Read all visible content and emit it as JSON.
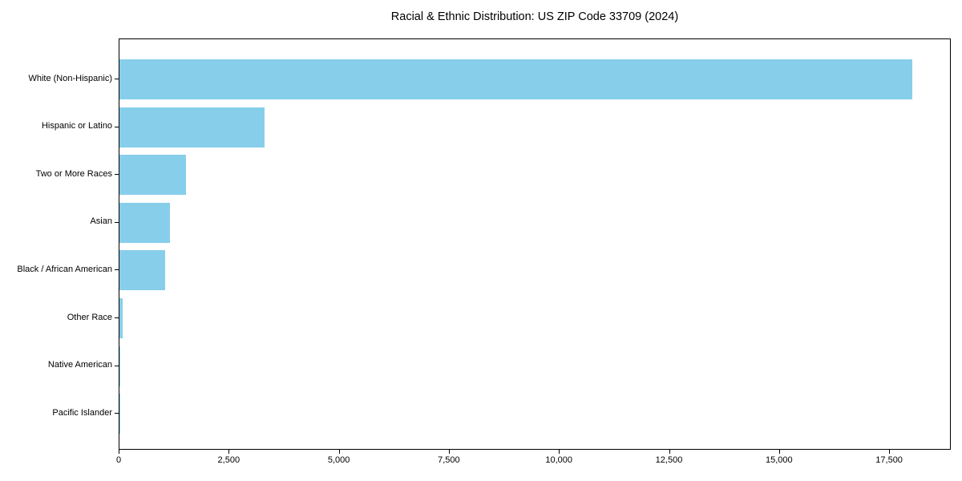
{
  "chart_data": {
    "type": "bar",
    "orientation": "horizontal",
    "title": "Racial & Ethnic Distribution: US ZIP Code 33709 (2024)",
    "categories": [
      "White (Non-Hispanic)",
      "Hispanic or Latino",
      "Two or More Races",
      "Asian",
      "Black / African American",
      "Other Race",
      "Native American",
      "Pacific Islander"
    ],
    "values": [
      18000,
      3300,
      1520,
      1140,
      1040,
      75,
      20,
      8
    ],
    "xlabel": "",
    "ylabel": "",
    "xlim": [
      0,
      18900
    ],
    "x_ticks": {
      "values": [
        0,
        2500,
        5000,
        7500,
        10000,
        12500,
        15000,
        17500
      ],
      "labels": [
        "0",
        "2,500",
        "5,000",
        "7,500",
        "10,000",
        "12,500",
        "15,000",
        "17,500"
      ]
    },
    "grid": false,
    "legend_position": "none",
    "bar_color": "#87CEEB",
    "text_color": "#000000",
    "spine_color": "#000000",
    "background_color": "#ffffff"
  }
}
